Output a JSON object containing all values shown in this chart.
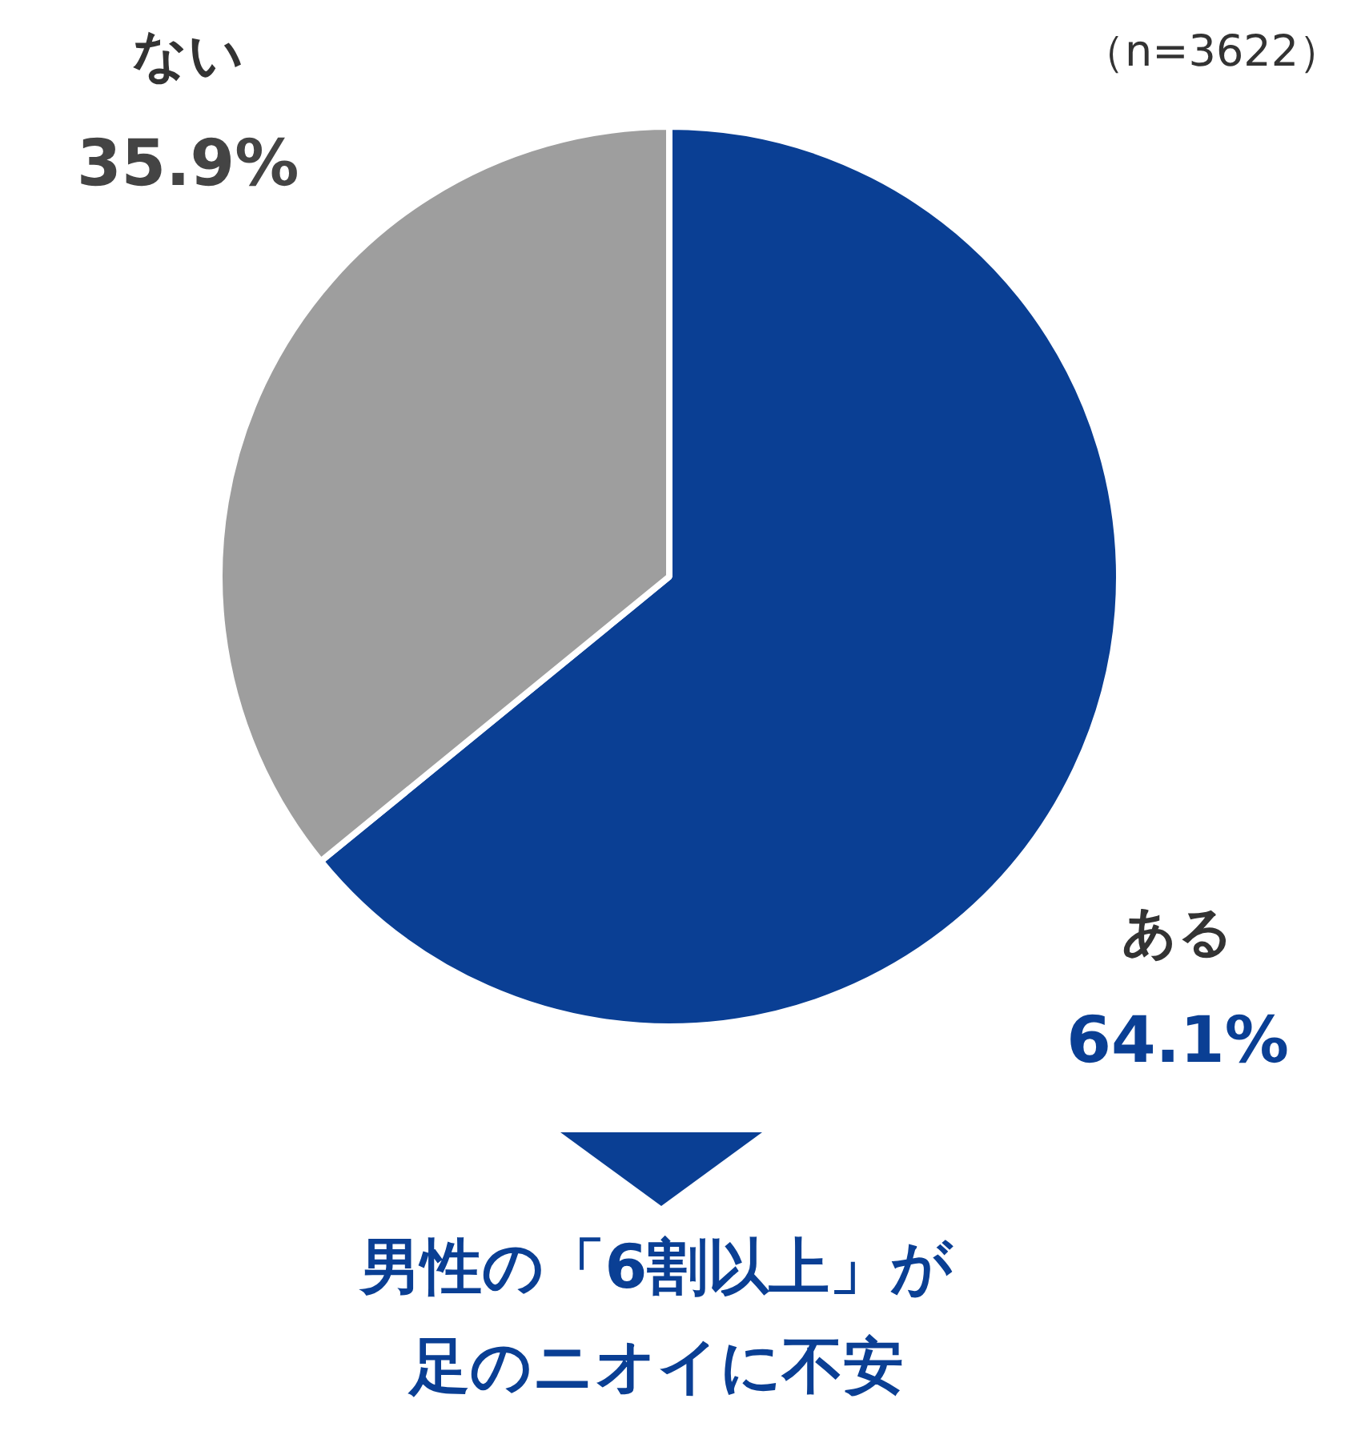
{
  "chart_data": {
    "type": "pie",
    "categories": [
      "ある",
      "ない"
    ],
    "values": [
      64.1,
      35.9
    ],
    "colors": [
      "#0a3f94",
      "#9e9e9e"
    ],
    "value_labels": [
      "64.1%",
      "35.9%"
    ],
    "annotations": [
      "（n=3622）",
      "男性の「6割以上」が",
      "足のニオイに不安"
    ],
    "legend": false
  }
}
